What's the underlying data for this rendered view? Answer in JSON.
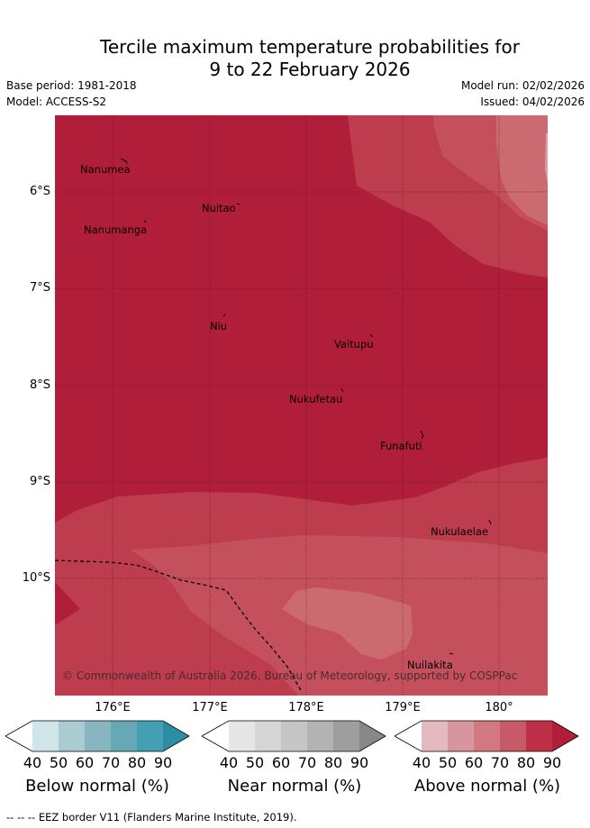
{
  "title": {
    "line1": "Tercile maximum temperature probabilities for",
    "line2": "9 to 22 February 2026"
  },
  "meta": {
    "base_period": "Base period: 1981-2018",
    "model": "Model: ACCESS-S2",
    "model_run": "Model run: 02/02/2026",
    "issued": "Issued: 04/02/2026"
  },
  "map": {
    "lat_labels": [
      "6°S",
      "7°S",
      "8°S",
      "9°S",
      "10°S"
    ],
    "lon_labels": [
      "176°E",
      "177°E",
      "178°E",
      "179°E",
      "180°"
    ],
    "places": [
      "Nanumea",
      "Nuitao",
      "Nanumanga",
      "Niu",
      "Vaitupu",
      "Nukufetau",
      "Funafuti",
      "Nukulaelae",
      "Nuilakita"
    ],
    "copyright": "© Commonwealth of Australia 2026, Bureau of Meteorology, supported by COSPPac",
    "fill_colors": {
      "above_90": "#b01e3a",
      "above_80": "#bd3c4e",
      "above_70": "#c4505d",
      "above_60": "#cc6a72"
    }
  },
  "colorbars": {
    "ticks": [
      "40",
      "50",
      "60",
      "70",
      "80",
      "90"
    ],
    "below": {
      "label": "Below normal (%)",
      "colors": [
        "#ffffff",
        "#cfe5ea",
        "#a9cbd1",
        "#87b6c1",
        "#67a8b7",
        "#449fb2",
        "#2c8ea3"
      ]
    },
    "near": {
      "label": "Near normal (%)",
      "colors": [
        "#ffffff",
        "#e6e6e6",
        "#d6d6d6",
        "#c6c6c6",
        "#b3b3b3",
        "#9e9e9e",
        "#888888"
      ]
    },
    "above": {
      "label": "Above normal (%)",
      "colors": [
        "#ffffff",
        "#e4b9bf",
        "#d9959d",
        "#d17880",
        "#c65a66",
        "#bd3048",
        "#b01e3a"
      ]
    }
  },
  "footer": "--  --  -- EEZ border V11 (Flanders Marine Institute, 2019)."
}
